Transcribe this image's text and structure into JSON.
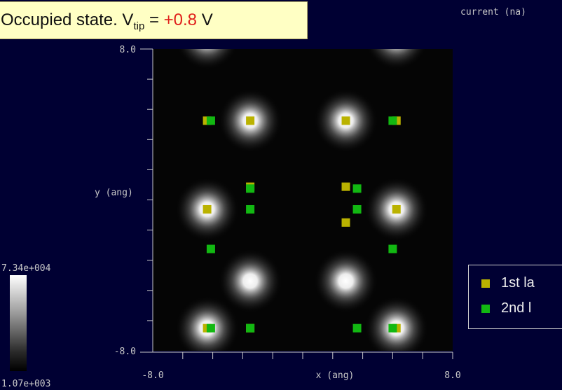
{
  "title": {
    "prefix": "Occupied state. V",
    "subscript": "tip",
    "equals": " = ",
    "value": "+0.8",
    "suffix": " V"
  },
  "corner_label": "current (na)",
  "colorbar": {
    "max_label": "7.34e+004",
    "min_label": "1.07e+003"
  },
  "legend": {
    "items": [
      {
        "label": "1st la",
        "color": "#bab200"
      },
      {
        "label": "2nd l",
        "color": "#12b812"
      }
    ]
  },
  "chart_data": {
    "type": "heatmap",
    "xlabel": "x (ang)",
    "ylabel": "y (ang)",
    "xlim": [
      -8.0,
      8.0
    ],
    "ylim": [
      -8.0,
      8.0
    ],
    "x_ticks": [
      {
        "value": -8.0,
        "label": "-8.0"
      },
      {
        "value": 8.0,
        "label": "8.0"
      }
    ],
    "y_ticks": [
      {
        "value": -8.0,
        "label": "-8.0"
      },
      {
        "value": 8.0,
        "label": "8.0"
      }
    ],
    "colorbar_range": [
      1070,
      73400
    ],
    "series": [
      {
        "name": "1st la",
        "color": "#bab200",
        "points": [
          [
            -5.1,
            4.2
          ],
          [
            -2.8,
            4.2
          ],
          [
            2.3,
            4.2
          ],
          [
            5.0,
            4.2
          ],
          [
            -5.1,
            -0.5
          ],
          [
            -2.8,
            -6.8
          ],
          [
            2.3,
            -1.2
          ],
          [
            5.0,
            -0.5
          ],
          [
            -2.8,
            0.7
          ],
          [
            2.3,
            0.7
          ],
          [
            -5.1,
            -6.8
          ],
          [
            5.0,
            -6.8
          ]
        ]
      },
      {
        "name": "2nd l",
        "color": "#12b812",
        "points": [
          [
            -4.9,
            4.2
          ],
          [
            4.8,
            4.2
          ],
          [
            -2.8,
            -0.5
          ],
          [
            2.9,
            -0.5
          ],
          [
            -4.9,
            -6.8
          ],
          [
            4.8,
            -6.8
          ],
          [
            -4.9,
            -2.6
          ],
          [
            4.8,
            -2.6
          ],
          [
            -2.8,
            -6.8
          ],
          [
            2.9,
            -6.8
          ],
          [
            -2.8,
            0.6
          ],
          [
            2.9,
            0.6
          ]
        ]
      }
    ]
  }
}
